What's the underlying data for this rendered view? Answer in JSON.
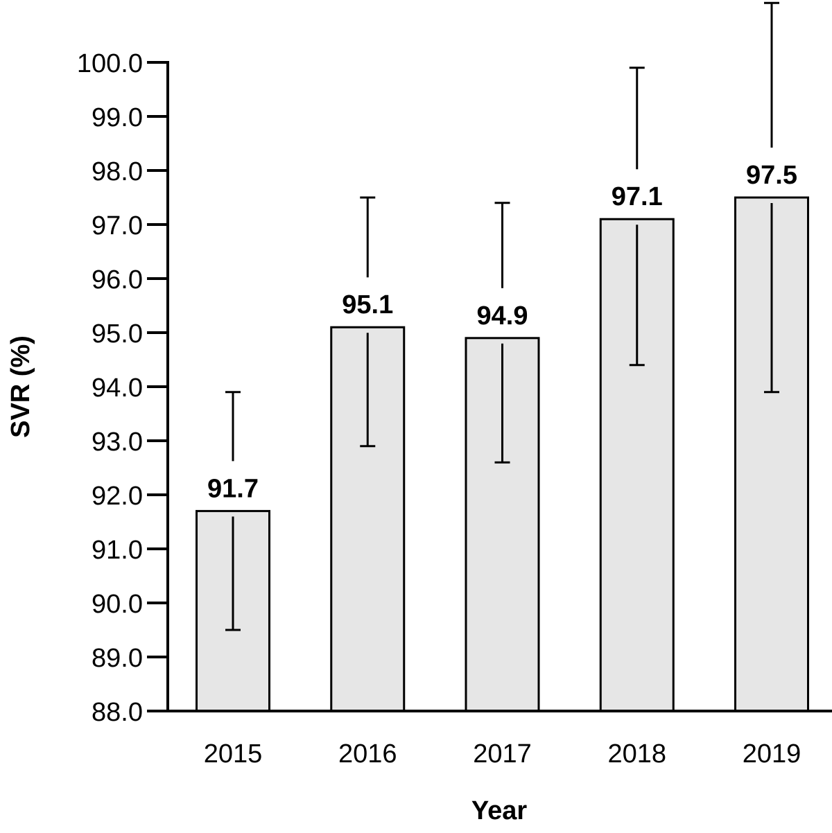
{
  "chart_data": {
    "type": "bar",
    "title": "",
    "xlabel": "Year",
    "ylabel": "SVR (%)",
    "ylim": [
      88.0,
      100.0
    ],
    "yticks": [
      "88.0",
      "89.0",
      "90.0",
      "91.0",
      "92.0",
      "93.0",
      "94.0",
      "95.0",
      "96.0",
      "97.0",
      "98.0",
      "99.0",
      "100.0"
    ],
    "categories": [
      "2015",
      "2016",
      "2017",
      "2018",
      "2019"
    ],
    "values": [
      91.7,
      95.1,
      94.9,
      97.1,
      97.5
    ],
    "value_labels": [
      "91.7",
      "95.1",
      "94.9",
      "97.1",
      "97.5"
    ],
    "error_upper": [
      93.9,
      97.5,
      97.4,
      99.9,
      101.1
    ],
    "error_lower": [
      89.5,
      92.9,
      92.6,
      94.4,
      93.9
    ],
    "bar_color": "#e6e6e6",
    "edge_color": "#000000",
    "grid": false,
    "legend": "none"
  }
}
